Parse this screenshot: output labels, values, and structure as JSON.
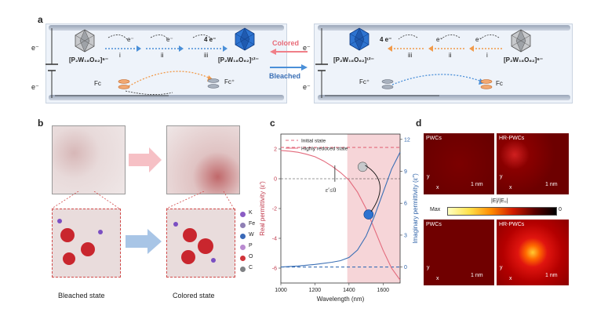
{
  "panel_labels": {
    "a": "a",
    "b": "b",
    "c": "c",
    "d": "d"
  },
  "panel_a": {
    "electron": "e⁻",
    "four_electron": "4 e⁻",
    "steps": [
      "i",
      "ii",
      "iii"
    ],
    "reduced_left": "[P₂W₁₈O₆₂]⁶⁻",
    "reduced_right": "[P₂W₁₈O₆₂]¹²⁻",
    "fc": "Fc",
    "fc_plus": "Fc⁺",
    "colored": "Colored",
    "bleached": "Bleached"
  },
  "panel_b": {
    "bleached_state": "Bleached state",
    "colored_state": "Colored state",
    "legend": [
      {
        "label": "K",
        "color": "#8a5cc4"
      },
      {
        "label": "Fe",
        "color": "#8f7fb5"
      },
      {
        "label": "W",
        "color": "#3a69b8"
      },
      {
        "label": "P",
        "color": "#b98ad0"
      },
      {
        "label": "O",
        "color": "#d0343a"
      },
      {
        "label": "C",
        "color": "#7f8184"
      }
    ]
  },
  "chart_data": {
    "type": "line",
    "xlabel": "Wavelength (nm)",
    "ylabel_left": "Real permittivity (ε′)",
    "ylabel_right": "Imaginary permittivity (ε″)",
    "xlim": [
      1000,
      1700
    ],
    "ylim_left": [
      -7,
      3
    ],
    "ylim_right": [
      -1.5,
      12.5
    ],
    "x_ticks": [
      1000,
      1200,
      1400,
      1600
    ],
    "y_ticks_left": [
      2,
      0,
      -2,
      -4,
      -6
    ],
    "y_ticks_right": [
      0,
      3,
      6,
      9,
      12
    ],
    "highlight_range": [
      1390,
      1700
    ],
    "annotation": "ε′≤0",
    "legend": [
      "Initial state",
      "Highly reduced state"
    ],
    "series": [
      {
        "name": "Initial state",
        "axis": "left",
        "style": "dashed",
        "color": "#e36a7c",
        "x": [
          1000,
          1700
        ],
        "y": [
          2.1,
          2.1
        ]
      },
      {
        "name": "Initial state",
        "axis": "right",
        "style": "dashed",
        "color": "#3a6fb5",
        "x": [
          1000,
          1700
        ],
        "y": [
          0.0,
          0.0
        ]
      },
      {
        "name": "Highly reduced state",
        "axis": "left",
        "style": "solid",
        "color": "#e36a7c",
        "x": [
          1000,
          1050,
          1100,
          1150,
          1200,
          1250,
          1300,
          1350,
          1400,
          1450,
          1500,
          1550,
          1600,
          1650,
          1700
        ],
        "y": [
          1.9,
          1.85,
          1.78,
          1.65,
          1.48,
          1.2,
          0.85,
          0.42,
          -0.1,
          -0.9,
          -2.0,
          -3.4,
          -4.8,
          -6.0,
          -6.8
        ]
      },
      {
        "name": "Highly reduced state",
        "axis": "right",
        "style": "solid",
        "color": "#3a6fb5",
        "x": [
          1000,
          1100,
          1200,
          1300,
          1350,
          1400,
          1450,
          1500,
          1550,
          1600,
          1650,
          1700
        ],
        "y": [
          0.0,
          0.1,
          0.25,
          0.45,
          0.6,
          0.9,
          1.6,
          2.9,
          4.8,
          7.0,
          9.2,
          10.8
        ]
      }
    ]
  },
  "panel_d": {
    "pwcs": "PWCs",
    "hr_pwcs": "HR-PWCs",
    "scale": "1 nm",
    "axis_y": "y",
    "axis_x": "x",
    "colorbar_title": "|E|/|E₀|",
    "colorbar_max": "Max",
    "colorbar_min": "0"
  }
}
